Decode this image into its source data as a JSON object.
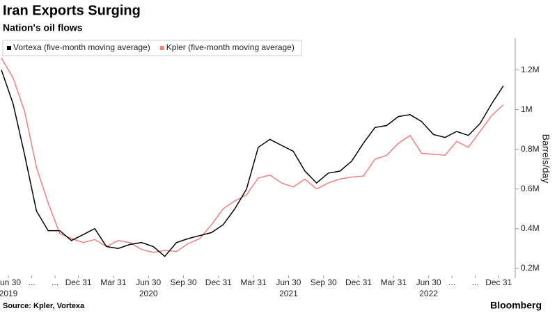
{
  "chart_data": {
    "type": "line",
    "title": "Iran Exports Surging",
    "subtitle": "Nation's oil flows",
    "y_label": "Barrels/day",
    "source": "Source: Kpler, Vortexa",
    "brand": "Bloomberg",
    "categories": [
      "Jun 30",
      null,
      "...",
      null,
      "...",
      null,
      "Dec 31",
      null,
      null,
      "Mar 31",
      null,
      null,
      "Jun 30",
      null,
      null,
      "Sep 30",
      null,
      null,
      "Dec 31",
      null,
      null,
      "Mar 31",
      null,
      null,
      "Jun 30",
      null,
      null,
      "Sep 30",
      null,
      null,
      "Dec 31",
      null,
      null,
      "Mar 31",
      null,
      null,
      "Jun 30",
      null,
      "...",
      null,
      "...",
      null,
      "Dec 31",
      null
    ],
    "years": [
      "2019",
      null,
      null,
      null,
      null,
      null,
      null,
      null,
      null,
      null,
      null,
      null,
      "2020",
      null,
      null,
      null,
      null,
      null,
      null,
      null,
      null,
      null,
      null,
      null,
      "2021",
      null,
      null,
      null,
      null,
      null,
      null,
      null,
      null,
      null,
      null,
      null,
      "2022",
      null,
      null,
      null,
      null,
      null,
      null,
      null
    ],
    "series": [
      {
        "name": "Vortexa (five-month moving average)",
        "color": "#000000",
        "values": [
          1200000,
          1030000,
          770000,
          490000,
          390000,
          390000,
          340000,
          370000,
          400000,
          310000,
          300000,
          320000,
          330000,
          310000,
          260000,
          330000,
          350000,
          365000,
          380000,
          420000,
          500000,
          600000,
          810000,
          850000,
          820000,
          790000,
          690000,
          630000,
          680000,
          690000,
          740000,
          830000,
          910000,
          920000,
          965000,
          975000,
          940000,
          875000,
          860000,
          890000,
          870000,
          930000,
          1030000,
          1120000
        ]
      },
      {
        "name": "Kpler (five-month moving average)",
        "color": "#f07f7f",
        "values": [
          1260000,
          1160000,
          990000,
          710000,
          530000,
          375000,
          350000,
          330000,
          345000,
          310000,
          340000,
          330000,
          295000,
          280000,
          290000,
          285000,
          325000,
          350000,
          420000,
          500000,
          540000,
          570000,
          655000,
          670000,
          630000,
          610000,
          650000,
          600000,
          630000,
          650000,
          660000,
          665000,
          750000,
          770000,
          830000,
          870000,
          780000,
          775000,
          770000,
          840000,
          810000,
          890000,
          970000,
          1025000
        ]
      }
    ],
    "ylim": [
      150000,
      1360000
    ],
    "yticks": [
      {
        "value": 200000,
        "label": "0.2M"
      },
      {
        "value": 400000,
        "label": "0.4M"
      },
      {
        "value": 600000,
        "label": "0.6M"
      },
      {
        "value": 800000,
        "label": "0.8M"
      },
      {
        "value": 1000000,
        "label": "1M"
      },
      {
        "value": 1200000,
        "label": "1.2M"
      }
    ],
    "legend": "top-left",
    "grid": false
  }
}
